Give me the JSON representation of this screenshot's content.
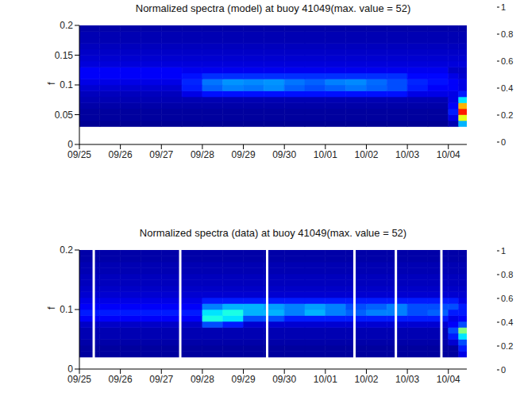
{
  "chart_data": [
    {
      "type": "heatmap",
      "title": "Normalized spectra (model) at buoy 41049(max. value = 52)",
      "ylabel": "f",
      "xlim": [
        0,
        9.45
      ],
      "xticks": [
        {
          "value": 0,
          "label": "09/25"
        },
        {
          "value": 1,
          "label": "09/26"
        },
        {
          "value": 2,
          "label": "09/27"
        },
        {
          "value": 3,
          "label": "09/28"
        },
        {
          "value": 4,
          "label": "09/29"
        },
        {
          "value": 5,
          "label": "09/30"
        },
        {
          "value": 6,
          "label": "10/01"
        },
        {
          "value": 7,
          "label": "10/02"
        },
        {
          "value": 8,
          "label": "10/03"
        },
        {
          "value": 9,
          "label": "10/04"
        }
      ],
      "ylim": [
        0,
        0.2
      ],
      "yticks": [
        0,
        0.05,
        0.1,
        0.15,
        0.2
      ],
      "x_bins": [
        0,
        0.5,
        1,
        1.5,
        2,
        2.5,
        3,
        3.5,
        4,
        4.5,
        5,
        5.5,
        6,
        6.5,
        7,
        7.5,
        8,
        8.5,
        9,
        9.25,
        9.45
      ],
      "y_bins": [
        0.03,
        0.04,
        0.05,
        0.06,
        0.07,
        0.08,
        0.09,
        0.1,
        0.11,
        0.12,
        0.13,
        0.14,
        0.15,
        0.16,
        0.17,
        0.18,
        0.19,
        0.2
      ],
      "cells": [
        [
          0.02,
          0.02,
          0.02,
          0.02,
          0.02,
          0.02,
          0.02,
          0.02,
          0.02,
          0.02,
          0.02,
          0.02,
          0.02,
          0.02,
          0.02,
          0.02,
          0.02,
          0.02,
          0.05,
          0.3
        ],
        [
          0.03,
          0.03,
          0.03,
          0.03,
          0.03,
          0.03,
          0.03,
          0.03,
          0.03,
          0.03,
          0.03,
          0.03,
          0.03,
          0.03,
          0.03,
          0.03,
          0.03,
          0.03,
          0.1,
          0.6
        ],
        [
          0.03,
          0.03,
          0.03,
          0.03,
          0.03,
          0.03,
          0.03,
          0.03,
          0.03,
          0.03,
          0.03,
          0.03,
          0.03,
          0.03,
          0.03,
          0.03,
          0.03,
          0.03,
          0.15,
          0.85
        ],
        [
          0.04,
          0.04,
          0.04,
          0.04,
          0.04,
          0.04,
          0.04,
          0.04,
          0.04,
          0.04,
          0.04,
          0.04,
          0.04,
          0.04,
          0.04,
          0.04,
          0.04,
          0.04,
          0.12,
          0.7
        ],
        [
          0.05,
          0.05,
          0.05,
          0.05,
          0.05,
          0.05,
          0.05,
          0.05,
          0.05,
          0.05,
          0.05,
          0.05,
          0.05,
          0.05,
          0.05,
          0.05,
          0.05,
          0.05,
          0.1,
          0.35
        ],
        [
          0.06,
          0.06,
          0.06,
          0.06,
          0.06,
          0.1,
          0.14,
          0.14,
          0.14,
          0.14,
          0.14,
          0.14,
          0.14,
          0.14,
          0.14,
          0.14,
          0.1,
          0.1,
          0.1,
          0.15
        ],
        [
          0.08,
          0.08,
          0.08,
          0.08,
          0.08,
          0.15,
          0.22,
          0.25,
          0.24,
          0.26,
          0.22,
          0.2,
          0.22,
          0.24,
          0.22,
          0.2,
          0.15,
          0.12,
          0.12,
          0.1
        ],
        [
          0.1,
          0.1,
          0.1,
          0.1,
          0.1,
          0.16,
          0.24,
          0.27,
          0.26,
          0.27,
          0.24,
          0.22,
          0.25,
          0.26,
          0.23,
          0.2,
          0.16,
          0.14,
          0.12,
          0.1
        ],
        [
          0.12,
          0.12,
          0.12,
          0.12,
          0.12,
          0.14,
          0.17,
          0.17,
          0.17,
          0.17,
          0.17,
          0.17,
          0.17,
          0.17,
          0.17,
          0.17,
          0.13,
          0.13,
          0.1,
          0.08
        ],
        [
          0.12,
          0.12,
          0.12,
          0.12,
          0.12,
          0.11,
          0.11,
          0.11,
          0.11,
          0.11,
          0.11,
          0.11,
          0.11,
          0.11,
          0.11,
          0.11,
          0.11,
          0.11,
          0.07,
          0.07
        ],
        [
          0.09,
          0.09,
          0.09,
          0.09,
          0.09,
          0.09,
          0.09,
          0.09,
          0.09,
          0.09,
          0.09,
          0.09,
          0.09,
          0.09,
          0.09,
          0.09,
          0.09,
          0.09,
          0.09,
          0.09
        ],
        [
          0.08,
          0.08,
          0.08,
          0.08,
          0.08,
          0.08,
          0.08,
          0.08,
          0.08,
          0.08,
          0.08,
          0.08,
          0.08,
          0.08,
          0.08,
          0.08,
          0.08,
          0.08,
          0.08,
          0.08
        ],
        [
          0.07,
          0.07,
          0.07,
          0.07,
          0.07,
          0.07,
          0.07,
          0.07,
          0.07,
          0.07,
          0.07,
          0.07,
          0.07,
          0.07,
          0.07,
          0.07,
          0.07,
          0.07,
          0.07,
          0.07
        ],
        [
          0.06,
          0.06,
          0.06,
          0.06,
          0.06,
          0.06,
          0.06,
          0.06,
          0.06,
          0.06,
          0.06,
          0.06,
          0.06,
          0.06,
          0.06,
          0.06,
          0.06,
          0.06,
          0.06,
          0.06
        ],
        [
          0.05,
          0.05,
          0.05,
          0.05,
          0.05,
          0.05,
          0.05,
          0.05,
          0.05,
          0.05,
          0.05,
          0.05,
          0.05,
          0.05,
          0.05,
          0.05,
          0.05,
          0.05,
          0.05,
          0.05
        ],
        [
          0.05,
          0.05,
          0.05,
          0.05,
          0.05,
          0.05,
          0.05,
          0.05,
          0.05,
          0.05,
          0.05,
          0.05,
          0.05,
          0.05,
          0.05,
          0.05,
          0.05,
          0.05,
          0.05,
          0.05
        ],
        [
          0.04,
          0.04,
          0.04,
          0.04,
          0.04,
          0.04,
          0.04,
          0.04,
          0.04,
          0.04,
          0.04,
          0.04,
          0.04,
          0.04,
          0.04,
          0.04,
          0.04,
          0.04,
          0.04,
          0.04
        ]
      ],
      "colorbar_range": [
        0,
        1
      ],
      "colorbar_ticks": [
        0,
        0.2,
        0.4,
        0.6,
        0.8,
        1
      ]
    },
    {
      "type": "heatmap",
      "title": "Normalized spectra (data) at buoy 41049(max. value = 52)",
      "ylabel": "f",
      "xlim": [
        0,
        9.45
      ],
      "xticks": [
        {
          "value": 0,
          "label": "09/25"
        },
        {
          "value": 1,
          "label": "09/26"
        },
        {
          "value": 2,
          "label": "09/27"
        },
        {
          "value": 3,
          "label": "09/28"
        },
        {
          "value": 4,
          "label": "09/29"
        },
        {
          "value": 5,
          "label": "09/30"
        },
        {
          "value": 6,
          "label": "10/01"
        },
        {
          "value": 7,
          "label": "10/02"
        },
        {
          "value": 8,
          "label": "10/03"
        },
        {
          "value": 9,
          "label": "10/04"
        }
      ],
      "ylim": [
        0,
        0.2
      ],
      "yticks": [
        0,
        0.1,
        0.2
      ],
      "x_bins": [
        0,
        0.5,
        1,
        1.5,
        2,
        2.5,
        3,
        3.5,
        4,
        4.5,
        5,
        5.5,
        6,
        6.5,
        7,
        7.5,
        8,
        8.5,
        9,
        9.25,
        9.45
      ],
      "y_bins": [
        0.02,
        0.03,
        0.04,
        0.05,
        0.06,
        0.07,
        0.08,
        0.09,
        0.1,
        0.11,
        0.12,
        0.13,
        0.14,
        0.15,
        0.16,
        0.17,
        0.18,
        0.19,
        0.2
      ],
      "cells": [
        [
          0.03,
          0.03,
          0.03,
          0.03,
          0.03,
          0.03,
          0.03,
          0.03,
          0.03,
          0.03,
          0.03,
          0.03,
          0.03,
          0.03,
          0.03,
          0.03,
          0.03,
          0.03,
          0.03,
          0.1
        ],
        [
          0.03,
          0.03,
          0.03,
          0.03,
          0.03,
          0.03,
          0.03,
          0.03,
          0.03,
          0.03,
          0.03,
          0.03,
          0.03,
          0.03,
          0.03,
          0.03,
          0.03,
          0.03,
          0.03,
          0.15
        ],
        [
          0.04,
          0.04,
          0.04,
          0.04,
          0.04,
          0.04,
          0.04,
          0.04,
          0.04,
          0.04,
          0.04,
          0.04,
          0.04,
          0.04,
          0.04,
          0.04,
          0.04,
          0.04,
          0.08,
          0.2
        ],
        [
          0.05,
          0.05,
          0.05,
          0.05,
          0.05,
          0.05,
          0.05,
          0.05,
          0.05,
          0.05,
          0.05,
          0.05,
          0.05,
          0.05,
          0.05,
          0.05,
          0.05,
          0.05,
          0.15,
          0.35
        ],
        [
          0.05,
          0.05,
          0.05,
          0.05,
          0.05,
          0.05,
          0.05,
          0.05,
          0.05,
          0.05,
          0.05,
          0.05,
          0.05,
          0.05,
          0.05,
          0.05,
          0.05,
          0.05,
          0.2,
          0.5
        ],
        [
          0.07,
          0.07,
          0.07,
          0.07,
          0.07,
          0.07,
          0.2,
          0.15,
          0.08,
          0.08,
          0.08,
          0.08,
          0.08,
          0.08,
          0.08,
          0.08,
          0.08,
          0.08,
          0.12,
          0.2
        ],
        [
          0.12,
          0.12,
          0.12,
          0.12,
          0.12,
          0.12,
          0.4,
          0.35,
          0.2,
          0.2,
          0.15,
          0.15,
          0.15,
          0.15,
          0.15,
          0.15,
          0.15,
          0.15,
          0.1,
          0.12
        ],
        [
          0.15,
          0.15,
          0.15,
          0.15,
          0.15,
          0.15,
          0.35,
          0.4,
          0.3,
          0.3,
          0.25,
          0.3,
          0.25,
          0.22,
          0.25,
          0.25,
          0.2,
          0.22,
          0.15,
          0.15
        ],
        [
          0.12,
          0.12,
          0.12,
          0.12,
          0.12,
          0.12,
          0.25,
          0.3,
          0.3,
          0.28,
          0.25,
          0.28,
          0.25,
          0.2,
          0.22,
          0.25,
          0.2,
          0.2,
          0.2,
          0.15
        ],
        [
          0.1,
          0.1,
          0.1,
          0.1,
          0.1,
          0.1,
          0.15,
          0.15,
          0.15,
          0.15,
          0.15,
          0.15,
          0.15,
          0.15,
          0.15,
          0.15,
          0.15,
          0.15,
          0.15,
          0.1
        ],
        [
          0.08,
          0.08,
          0.08,
          0.08,
          0.08,
          0.08,
          0.08,
          0.08,
          0.08,
          0.08,
          0.08,
          0.08,
          0.08,
          0.08,
          0.08,
          0.08,
          0.08,
          0.08,
          0.08,
          0.08
        ],
        [
          0.07,
          0.07,
          0.07,
          0.07,
          0.07,
          0.07,
          0.07,
          0.07,
          0.07,
          0.07,
          0.07,
          0.07,
          0.07,
          0.07,
          0.07,
          0.07,
          0.07,
          0.07,
          0.07,
          0.07
        ],
        [
          0.06,
          0.06,
          0.06,
          0.06,
          0.06,
          0.06,
          0.06,
          0.06,
          0.06,
          0.06,
          0.06,
          0.06,
          0.06,
          0.06,
          0.06,
          0.06,
          0.06,
          0.06,
          0.06,
          0.06
        ],
        [
          0.06,
          0.06,
          0.06,
          0.06,
          0.06,
          0.06,
          0.06,
          0.06,
          0.06,
          0.06,
          0.06,
          0.06,
          0.06,
          0.06,
          0.06,
          0.06,
          0.06,
          0.06,
          0.06,
          0.06
        ],
        [
          0.05,
          0.05,
          0.05,
          0.05,
          0.05,
          0.05,
          0.05,
          0.05,
          0.05,
          0.05,
          0.05,
          0.05,
          0.05,
          0.05,
          0.05,
          0.05,
          0.05,
          0.05,
          0.05,
          0.05
        ],
        [
          0.05,
          0.05,
          0.05,
          0.05,
          0.05,
          0.05,
          0.05,
          0.05,
          0.05,
          0.05,
          0.05,
          0.05,
          0.05,
          0.05,
          0.05,
          0.05,
          0.05,
          0.05,
          0.05,
          0.05
        ],
        [
          0.04,
          0.04,
          0.04,
          0.04,
          0.04,
          0.04,
          0.04,
          0.04,
          0.04,
          0.04,
          0.04,
          0.04,
          0.04,
          0.04,
          0.04,
          0.04,
          0.04,
          0.04,
          0.04,
          0.04
        ],
        [
          0.04,
          0.04,
          0.04,
          0.04,
          0.04,
          0.04,
          0.04,
          0.04,
          0.04,
          0.04,
          0.04,
          0.04,
          0.04,
          0.04,
          0.04,
          0.04,
          0.04,
          0.04,
          0.04,
          0.04
        ]
      ],
      "gaps": [
        0.35,
        2.46,
        4.58,
        6.71,
        7.72,
        8.83
      ],
      "colorbar_range": [
        0,
        1
      ],
      "colorbar_ticks": [
        0,
        0.2,
        0.4,
        0.6,
        0.8,
        1
      ]
    }
  ]
}
